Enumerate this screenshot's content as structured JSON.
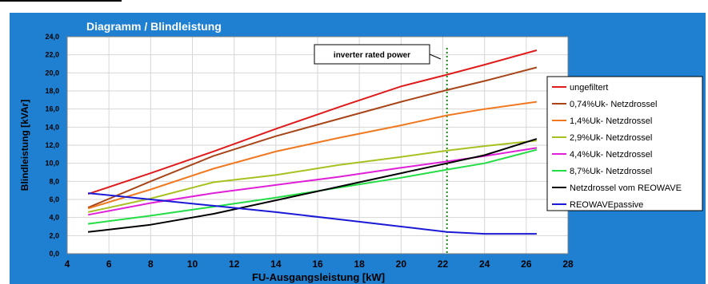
{
  "chart_data": {
    "type": "line",
    "title": "Diagramm / Blindleistung",
    "xlabel": "FU-Ausgangsleistung [kW]",
    "ylabel": "Blindleistung [kVAr]",
    "xlim": [
      4,
      28
    ],
    "ylim": [
      0,
      24
    ],
    "xticks": [
      "4",
      "6",
      "8",
      "10",
      "12",
      "14",
      "16",
      "18",
      "20",
      "22",
      "24",
      "26",
      "28"
    ],
    "yticks": [
      "0,0",
      "2,0",
      "4,0",
      "6,0",
      "8,0",
      "10,0",
      "12,0",
      "14,0",
      "16,0",
      "18,0",
      "20,0",
      "22,0",
      "24,0"
    ],
    "grid": true,
    "legend_position": "right",
    "annotation": {
      "text": "inverter rated power",
      "x": 22.2
    },
    "colors": {
      "background": "#1f7fd0",
      "plot_bg": "#ffffff",
      "grid": "#d6d6d6",
      "marker": "#1a8a1a"
    },
    "series": [
      {
        "name": "ungefiltert",
        "color": "#e01b1b",
        "x": [
          5,
          8,
          11,
          14,
          17,
          20,
          22.2,
          24,
          26.5
        ],
        "y": [
          6.6,
          8.9,
          11.3,
          13.8,
          16.2,
          18.5,
          19.8,
          20.9,
          22.5
        ]
      },
      {
        "name": "0,74%Uk- Netzdrossel",
        "color": "#a84518",
        "x": [
          5,
          8,
          11,
          14,
          17,
          20,
          22.2,
          24,
          26.5
        ],
        "y": [
          5.1,
          8.0,
          10.8,
          13.0,
          14.9,
          16.8,
          18.1,
          19.1,
          20.6
        ]
      },
      {
        "name": "1,4%Uk- Netzdrossel",
        "color": "#f07820",
        "x": [
          5,
          8,
          11,
          14,
          17,
          20,
          22.2,
          24,
          26.5
        ],
        "y": [
          5.0,
          7.1,
          9.4,
          11.3,
          12.8,
          14.2,
          15.3,
          16.0,
          16.8
        ]
      },
      {
        "name": "2,9%Uk- Netzdrossel",
        "color": "#a8c020",
        "x": [
          5,
          8,
          11,
          14,
          17,
          20,
          22.2,
          24,
          26.5
        ],
        "y": [
          4.6,
          6.1,
          7.9,
          8.7,
          9.8,
          10.7,
          11.4,
          11.9,
          12.5
        ]
      },
      {
        "name": "4,4%Uk- Netzdrossel",
        "color": "#e020d8",
        "x": [
          5,
          8,
          11,
          14,
          17,
          20,
          22.2,
          24,
          26.5
        ],
        "y": [
          4.3,
          5.6,
          6.7,
          7.6,
          8.5,
          9.5,
          10.2,
          10.8,
          11.7
        ]
      },
      {
        "name": "8,7%Uk- Netzdrossel",
        "color": "#22dd44",
        "x": [
          5,
          8,
          11,
          14,
          17,
          20,
          22.2,
          24,
          26.5
        ],
        "y": [
          3.3,
          4.2,
          5.2,
          6.2,
          7.3,
          8.4,
          9.3,
          10.0,
          11.5
        ]
      },
      {
        "name": "Netzdrossel vom REOWAVE",
        "color": "#000000",
        "x": [
          5,
          8,
          11,
          14,
          17,
          20,
          22.2,
          24,
          26.5
        ],
        "y": [
          2.4,
          3.2,
          4.4,
          5.9,
          7.4,
          8.9,
          10.0,
          10.9,
          12.7
        ]
      },
      {
        "name": "REOWAVEpassive",
        "color": "#1a1ad6",
        "x": [
          5,
          8,
          11,
          14,
          17,
          20,
          22.2,
          24,
          26.5
        ],
        "y": [
          6.7,
          6.0,
          5.3,
          4.6,
          3.8,
          3.0,
          2.4,
          2.2,
          2.2
        ]
      }
    ]
  }
}
